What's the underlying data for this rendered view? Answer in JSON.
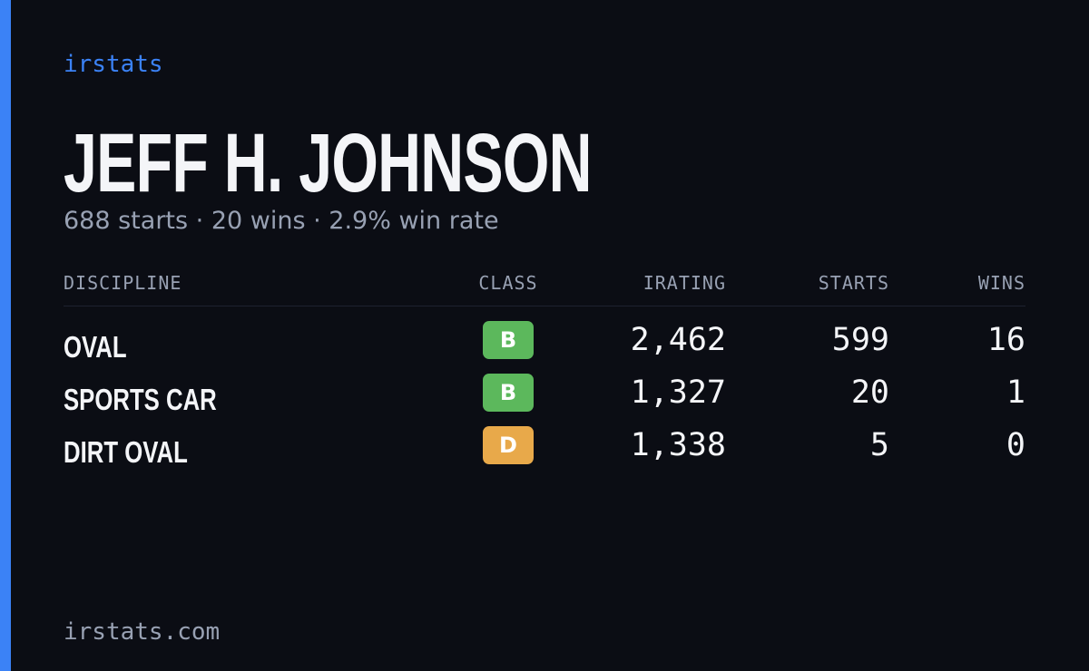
{
  "header": {
    "brand": "irstats",
    "name": "JEFF H. JOHNSON",
    "summary": "688 starts · 20 wins · 2.9% win rate"
  },
  "table": {
    "columns": [
      "DISCIPLINE",
      "CLASS",
      "IRATING",
      "STARTS",
      "WINS"
    ],
    "rows": [
      {
        "discipline": "OVAL",
        "class": "B",
        "class_color": "#5cb85c",
        "irating": "2,462",
        "starts": "599",
        "wins": "16"
      },
      {
        "discipline": "SPORTS CAR",
        "class": "B",
        "class_color": "#5cb85c",
        "irating": "1,327",
        "starts": "20",
        "wins": "1"
      },
      {
        "discipline": "DIRT OVAL",
        "class": "D",
        "class_color": "#e8a94a",
        "irating": "1,338",
        "starts": "5",
        "wins": "0"
      }
    ]
  },
  "footer": {
    "url": "irstats.com"
  }
}
